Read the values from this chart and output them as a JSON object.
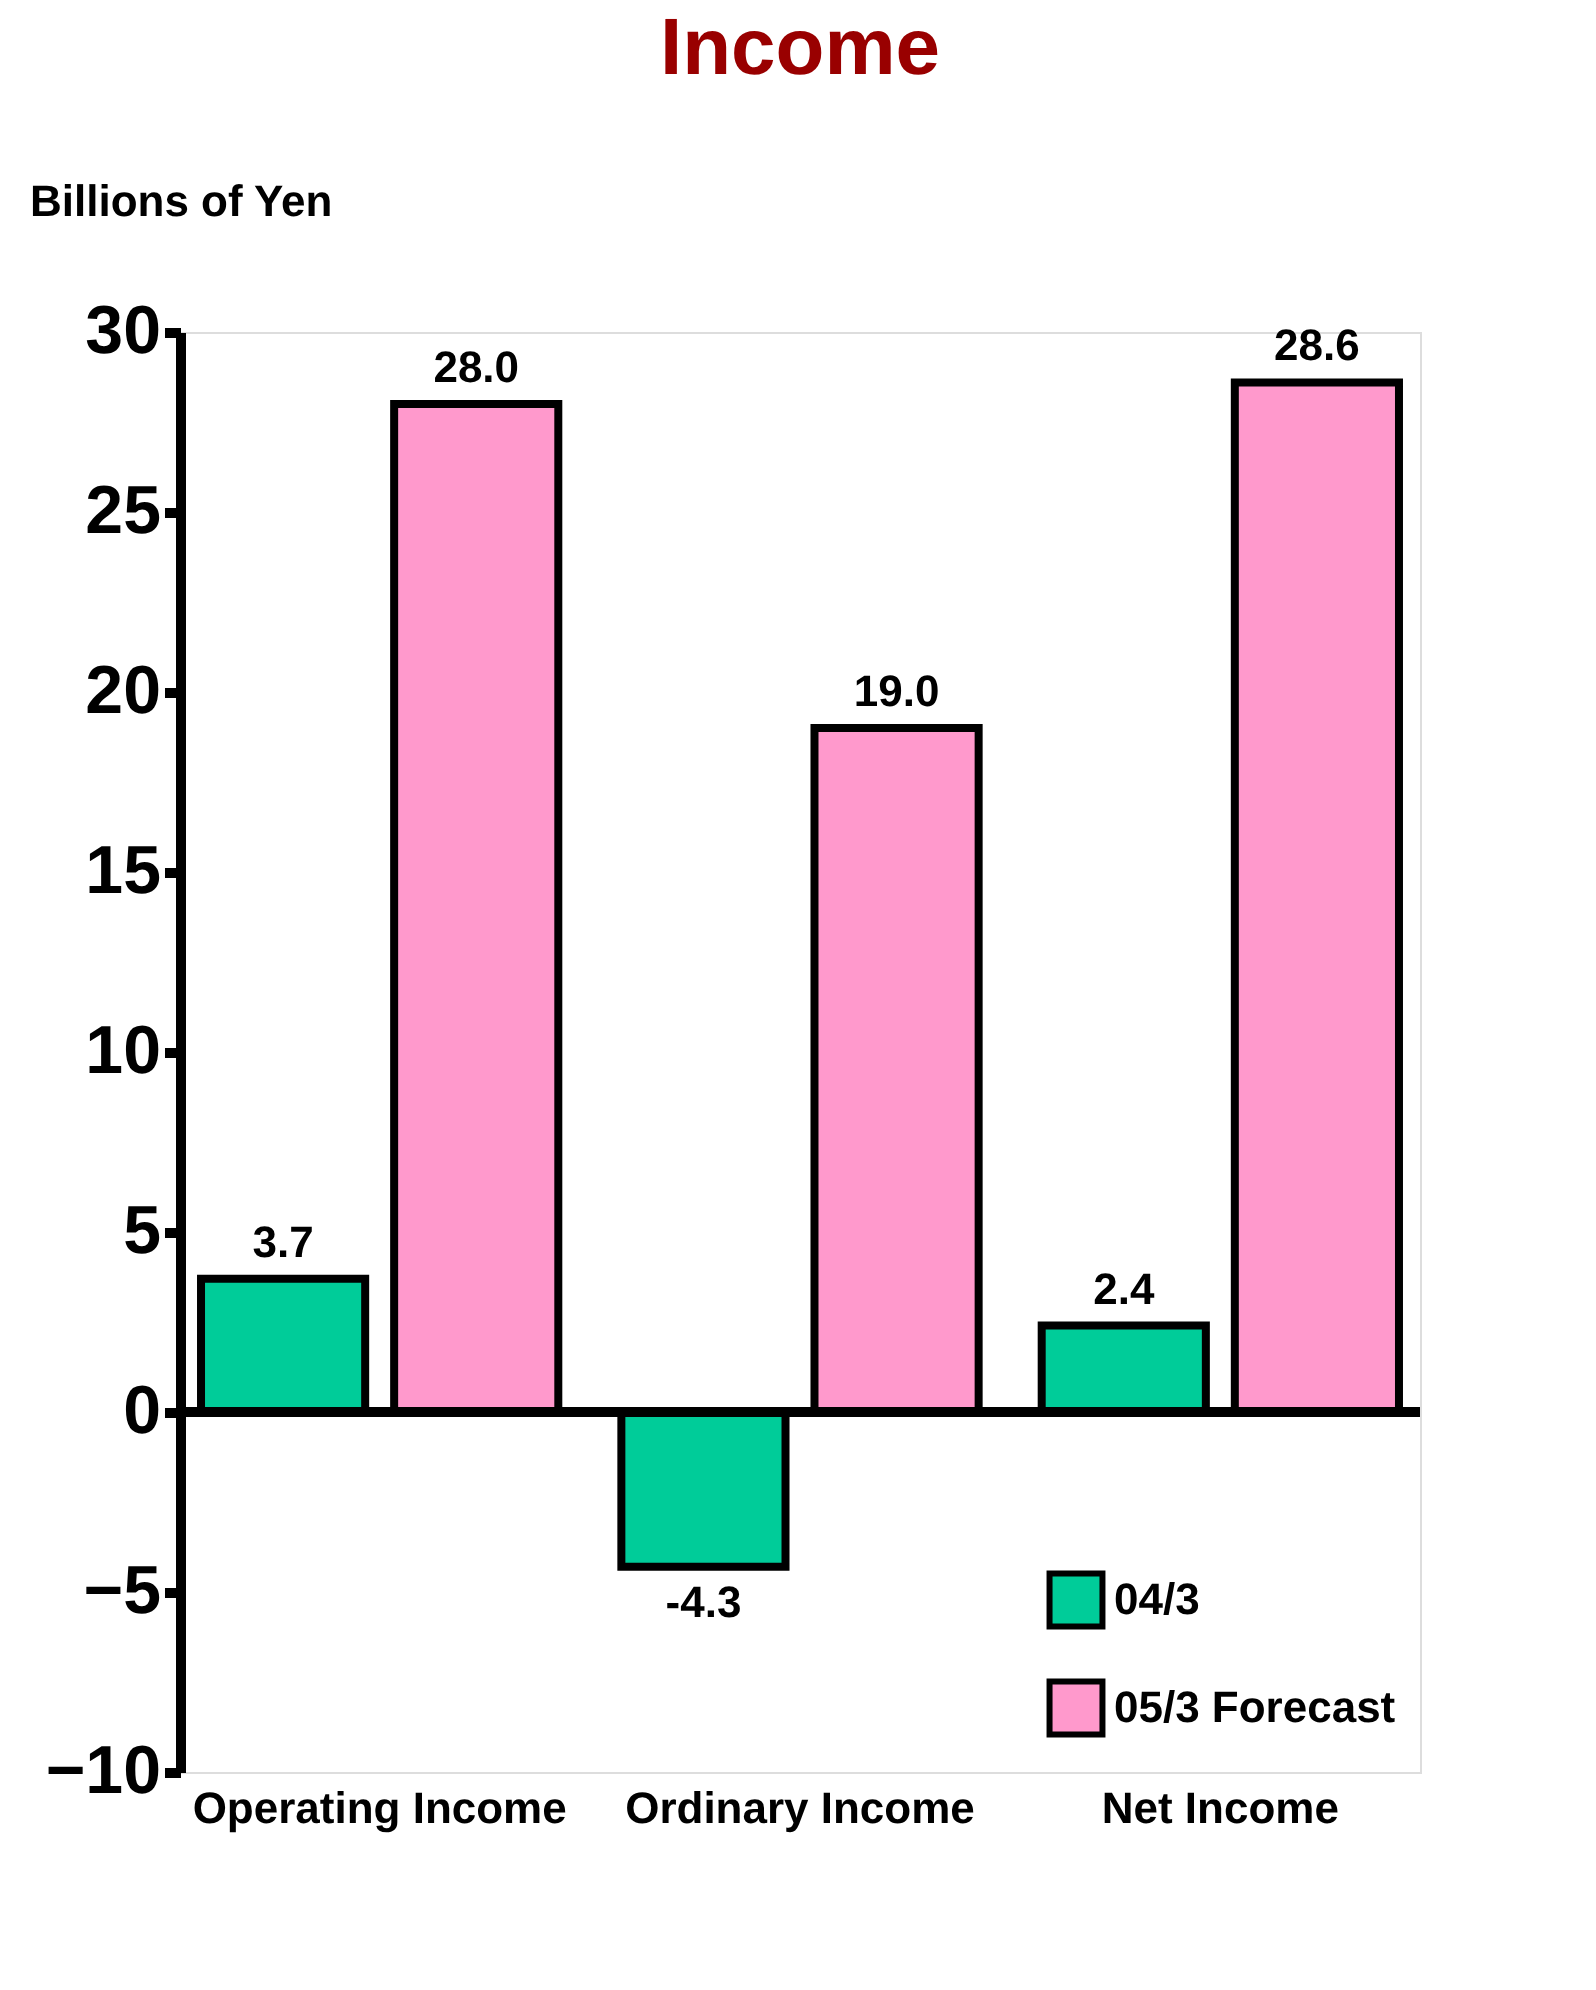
{
  "chart_data": {
    "type": "bar",
    "title": "Income",
    "ylabel": "Billions of Yen",
    "categories": [
      "Operating Income",
      "Ordinary Income",
      "Net Income"
    ],
    "series": [
      {
        "name": "04/3",
        "color": "#00cc99",
        "values": [
          3.7,
          -4.3,
          2.4
        ],
        "value_labels": [
          "3.7",
          "-4.3",
          "2.4"
        ]
      },
      {
        "name": "05/3 Forecast",
        "color": "#ff99cc",
        "values": [
          28.0,
          19.0,
          28.6
        ],
        "value_labels": [
          "28.0",
          "19.0",
          "28.6"
        ]
      }
    ],
    "ylim": [
      -10,
      30
    ],
    "yticks": [
      -10,
      -5,
      0,
      5,
      10,
      15,
      20,
      25,
      30
    ],
    "legend": "bottom right"
  }
}
